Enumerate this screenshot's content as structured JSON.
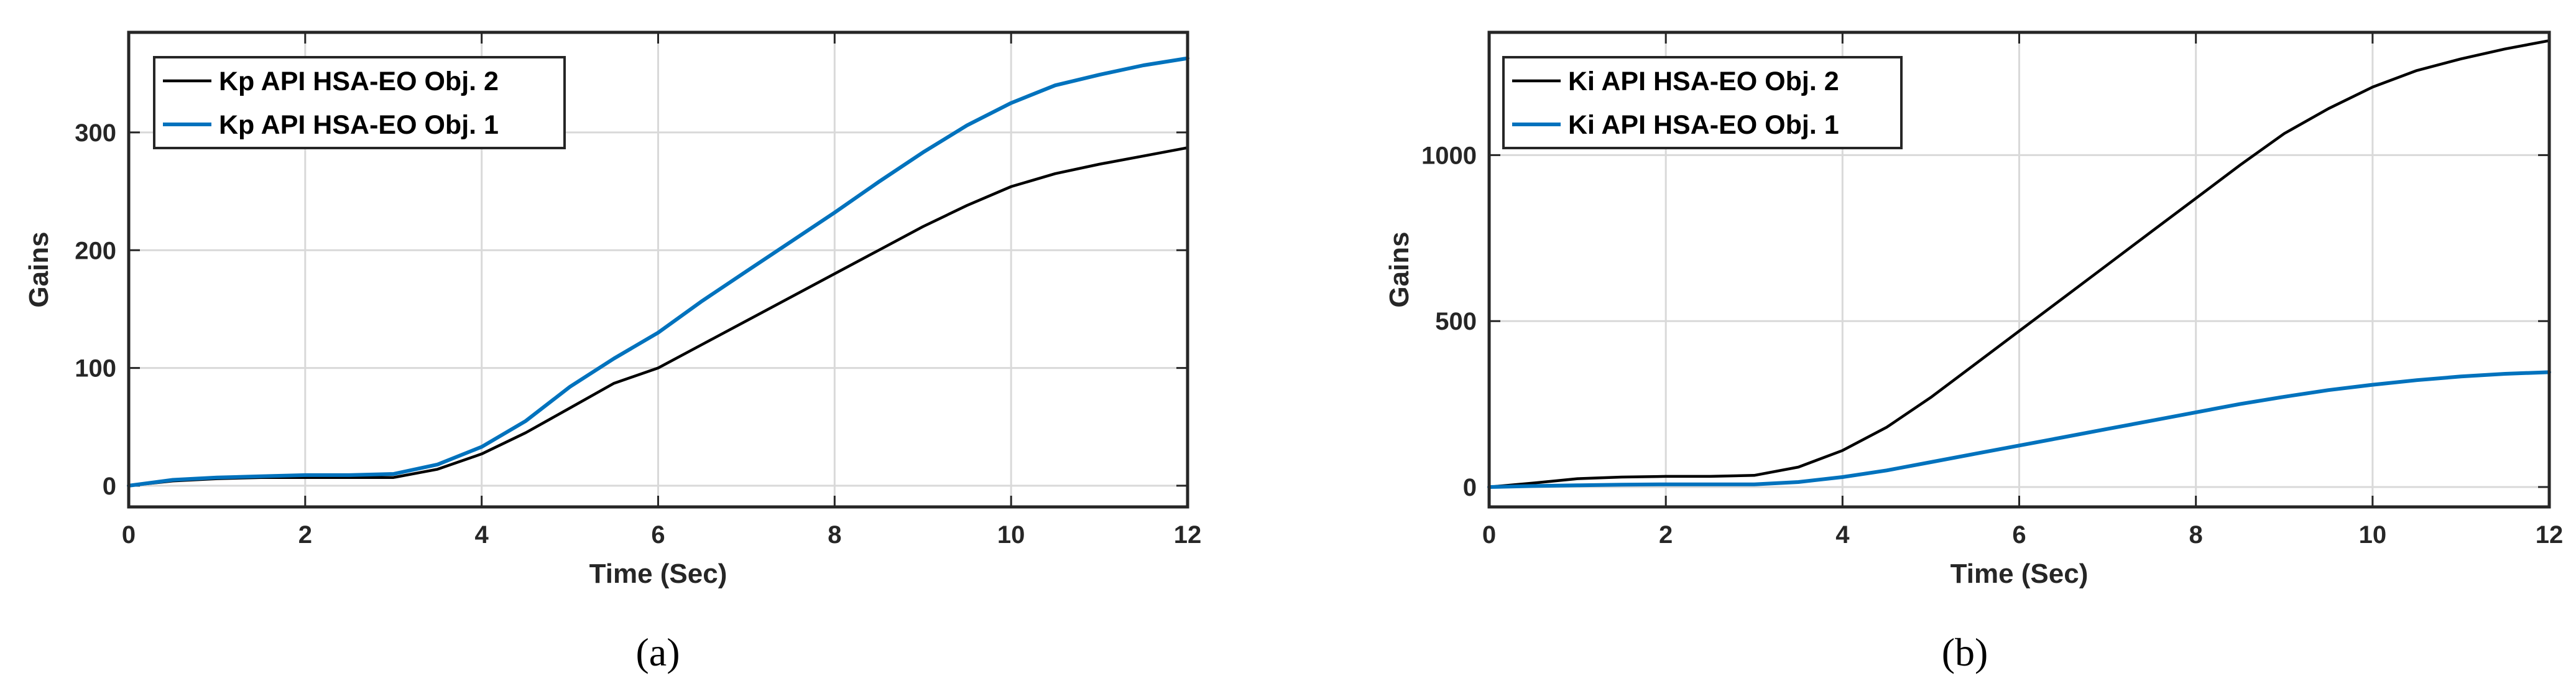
{
  "chart_data": [
    {
      "type": "line",
      "caption": "(a)",
      "xlabel": "Time (Sec)",
      "ylabel": "Gains",
      "xlim": [
        0,
        12
      ],
      "ylim": [
        -18,
        385
      ],
      "xticks": [
        0,
        2,
        4,
        6,
        8,
        10,
        12
      ],
      "yticks": [
        0,
        100,
        200,
        300
      ],
      "grid": true,
      "legend_position": "top-left",
      "series": [
        {
          "name": "Kp API HSA-EO Obj. 2",
          "color": "#000000",
          "x": [
            0,
            0.5,
            1,
            1.5,
            2,
            2.5,
            3,
            3.5,
            4,
            4.5,
            5,
            5.5,
            6,
            6.5,
            7,
            7.5,
            8,
            8.5,
            9,
            9.5,
            10,
            10.5,
            11,
            11.5,
            12
          ],
          "y": [
            0,
            4,
            6,
            7,
            7,
            7,
            7,
            14,
            27,
            45,
            66,
            87,
            100,
            120,
            140,
            160,
            180,
            200,
            220,
            238,
            254,
            265,
            273,
            280,
            287
          ]
        },
        {
          "name": "Kp API HSA-EO Obj. 1",
          "color": "#0072BD",
          "x": [
            0,
            0.5,
            1,
            1.5,
            2,
            2.5,
            3,
            3.5,
            4,
            4.5,
            5,
            5.5,
            6,
            6.5,
            7,
            7.5,
            8,
            8.5,
            9,
            9.5,
            10,
            10.5,
            11,
            11.5,
            12
          ],
          "y": [
            0,
            5,
            7,
            8,
            9,
            9,
            10,
            18,
            33,
            55,
            84,
            108,
            130,
            157,
            182,
            207,
            232,
            258,
            283,
            306,
            325,
            340,
            349,
            357,
            363
          ]
        }
      ]
    },
    {
      "type": "line",
      "caption": "(b)",
      "xlabel": "Time (Sec)",
      "ylabel": "Gains",
      "xlim": [
        0,
        12
      ],
      "ylim": [
        -60,
        1370
      ],
      "xticks": [
        0,
        2,
        4,
        6,
        8,
        10,
        12
      ],
      "yticks": [
        0,
        500,
        1000
      ],
      "grid": true,
      "legend_position": "top-left",
      "series": [
        {
          "name": "Ki API HSA-EO Obj. 2",
          "color": "#000000",
          "x": [
            0,
            0.5,
            1,
            1.5,
            2,
            2.5,
            3,
            3.5,
            4,
            4.5,
            5,
            5.5,
            6,
            6.5,
            7,
            7.5,
            8,
            8.5,
            9,
            9.5,
            10,
            10.5,
            11,
            11.5,
            12
          ],
          "y": [
            0,
            12,
            25,
            30,
            32,
            32,
            35,
            60,
            110,
            180,
            270,
            370,
            470,
            570,
            670,
            770,
            870,
            970,
            1065,
            1140,
            1205,
            1255,
            1290,
            1320,
            1345
          ]
        },
        {
          "name": "Ki API HSA-EO Obj. 1",
          "color": "#0072BD",
          "x": [
            0,
            0.5,
            1,
            1.5,
            2,
            2.5,
            3,
            3.5,
            4,
            4.5,
            5,
            5.5,
            6,
            6.5,
            7,
            7.5,
            8,
            8.5,
            9,
            9.5,
            10,
            10.5,
            11,
            11.5,
            12
          ],
          "y": [
            0,
            3,
            5,
            7,
            8,
            8,
            8,
            15,
            30,
            50,
            75,
            100,
            125,
            150,
            175,
            200,
            225,
            250,
            272,
            292,
            308,
            322,
            333,
            341,
            346
          ]
        }
      ]
    }
  ]
}
